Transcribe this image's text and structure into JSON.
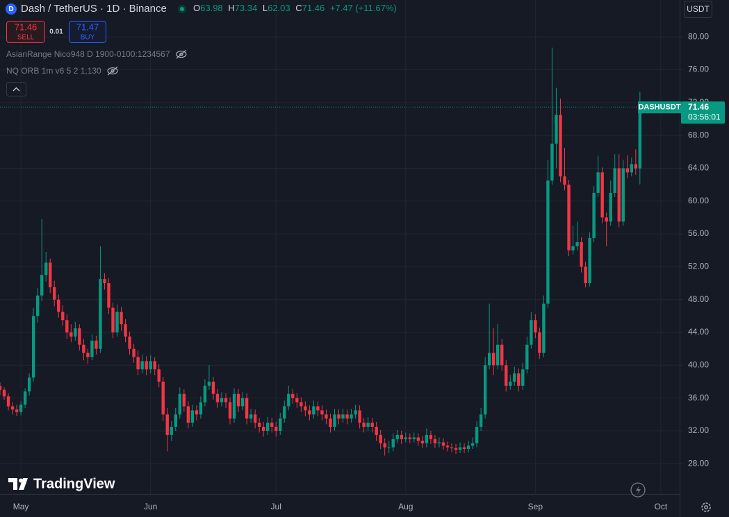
{
  "header": {
    "symbol": "Dash / TetherUS · 1D · Binance",
    "ohlc_letters": [
      "O",
      "H",
      "L",
      "C"
    ],
    "change": "+7.47 (+11.67%)"
  },
  "trade": {
    "sell_label": "SELL",
    "spread": 0.01,
    "buy_price": 71.47,
    "buy_label": "BUY"
  },
  "indicators": [
    "AsianRange Nico948 D 1900-0100:1234567",
    "NQ ORB 1m v6 5 2 1,130"
  ],
  "currency": "USDT",
  "price_tag": {
    "symbol": "DASHUSDT",
    "countdown": "03:56:01"
  },
  "brand": "TradingView",
  "chart_data": {
    "type": "candlestick",
    "up_color": "#089981",
    "down_color": "#f23645",
    "grid": true,
    "xlim": [
      0,
      162.5
    ],
    "xticks": [
      {
        "value": 5,
        "label": "May"
      },
      {
        "value": 36,
        "label": "Jun"
      },
      {
        "value": 66,
        "label": "Jul"
      },
      {
        "value": 97,
        "label": "Aug"
      },
      {
        "value": 128,
        "label": "Sep"
      },
      {
        "value": 158,
        "label": "Oct"
      }
    ],
    "ylim": [
      24.3,
      84.5
    ],
    "yticks": [
      {
        "value": 28,
        "label": "28.00"
      },
      {
        "value": 32,
        "label": "32.00"
      },
      {
        "value": 36,
        "label": "36.00"
      },
      {
        "value": 40,
        "label": "40.00"
      },
      {
        "value": 44,
        "label": "44.00"
      },
      {
        "value": 48,
        "label": "48.00"
      },
      {
        "value": 52,
        "label": "52.00"
      },
      {
        "value": 56,
        "label": "56.00"
      },
      {
        "value": 60,
        "label": "60.00"
      },
      {
        "value": 64,
        "label": "64.00"
      },
      {
        "value": 68,
        "label": "68.00"
      },
      {
        "value": 72,
        "label": "72.00"
      },
      {
        "value": 76,
        "label": "76.00"
      },
      {
        "value": 80,
        "label": "80.00"
      }
    ],
    "ohlc": [
      [
        37.5,
        37.9,
        36.4,
        37.0
      ],
      [
        37.0,
        37.3,
        35.8,
        36.2
      ],
      [
        36.2,
        36.6,
        34.5,
        35.0
      ],
      [
        35.0,
        35.5,
        34.0,
        34.6
      ],
      [
        34.6,
        35.2,
        33.8,
        34.3
      ],
      [
        34.3,
        35.6,
        33.9,
        35.2
      ],
      [
        35.2,
        37.2,
        34.8,
        36.8
      ],
      [
        36.8,
        39.0,
        36.3,
        38.5
      ],
      [
        38.5,
        47.0,
        38.0,
        46.0
      ],
      [
        46.0,
        49.4,
        45.2,
        48.5
      ],
      [
        48.5,
        57.8,
        47.8,
        51.0
      ],
      [
        51.0,
        53.8,
        50.2,
        52.5
      ],
      [
        52.5,
        53.0,
        48.8,
        49.5
      ],
      [
        49.5,
        50.3,
        47.2,
        48.0
      ],
      [
        48.0,
        48.6,
        45.8,
        46.5
      ],
      [
        46.5,
        47.3,
        44.8,
        45.5
      ],
      [
        45.5,
        46.2,
        43.2,
        44.0
      ],
      [
        44.0,
        45.0,
        42.8,
        43.5
      ],
      [
        43.5,
        45.3,
        43.0,
        44.5
      ],
      [
        44.5,
        45.0,
        41.8,
        42.5
      ],
      [
        42.5,
        43.2,
        40.6,
        41.5
      ],
      [
        41.5,
        42.0,
        40.2,
        41.0
      ],
      [
        41.0,
        43.8,
        40.6,
        43.0
      ],
      [
        43.0,
        43.6,
        41.3,
        42.0
      ],
      [
        42.0,
        54.5,
        41.5,
        50.5
      ],
      [
        50.5,
        51.2,
        49.2,
        50.0
      ],
      [
        50.0,
        50.6,
        46.2,
        47.0
      ],
      [
        47.0,
        47.6,
        43.3,
        44.0
      ],
      [
        44.0,
        47.4,
        43.5,
        46.5
      ],
      [
        46.5,
        47.1,
        44.2,
        45.0
      ],
      [
        45.0,
        45.6,
        42.8,
        43.5
      ],
      [
        43.5,
        44.1,
        41.3,
        42.0
      ],
      [
        42.0,
        42.6,
        40.3,
        41.0
      ],
      [
        41.0,
        41.8,
        38.8,
        39.5
      ],
      [
        39.5,
        41.3,
        39.0,
        40.5
      ],
      [
        40.5,
        41.1,
        38.8,
        39.5
      ],
      [
        39.5,
        41.2,
        39.0,
        40.5
      ],
      [
        40.5,
        41.0,
        38.8,
        39.5
      ],
      [
        39.5,
        40.1,
        37.3,
        38.0
      ],
      [
        38.0,
        38.6,
        33.2,
        34.0
      ],
      [
        34.0,
        34.8,
        29.5,
        31.5
      ],
      [
        31.5,
        33.2,
        30.8,
        32.5
      ],
      [
        32.5,
        34.8,
        32.0,
        34.0
      ],
      [
        34.0,
        37.3,
        33.5,
        36.5
      ],
      [
        36.5,
        37.1,
        34.3,
        35.0
      ],
      [
        35.0,
        35.6,
        32.3,
        33.0
      ],
      [
        33.0,
        35.2,
        32.5,
        34.5
      ],
      [
        34.5,
        35.1,
        33.3,
        34.0
      ],
      [
        34.0,
        36.2,
        33.5,
        35.5
      ],
      [
        35.5,
        38.3,
        35.0,
        37.5
      ],
      [
        37.5,
        40.0,
        37.0,
        38.0
      ],
      [
        38.0,
        38.6,
        35.8,
        36.5
      ],
      [
        36.5,
        37.1,
        34.8,
        35.5
      ],
      [
        35.5,
        36.7,
        35.0,
        36.0
      ],
      [
        36.0,
        36.6,
        34.8,
        35.5
      ],
      [
        35.5,
        36.1,
        32.8,
        33.5
      ],
      [
        33.5,
        37.2,
        33.0,
        36.5
      ],
      [
        36.5,
        37.1,
        34.3,
        35.0
      ],
      [
        35.0,
        36.7,
        34.5,
        36.0
      ],
      [
        36.0,
        36.6,
        32.8,
        33.5
      ],
      [
        33.5,
        34.7,
        33.0,
        34.0
      ],
      [
        34.0,
        34.6,
        32.3,
        33.0
      ],
      [
        33.0,
        33.6,
        31.8,
        32.5
      ],
      [
        32.5,
        33.1,
        31.3,
        32.0
      ],
      [
        32.0,
        33.7,
        31.5,
        33.0
      ],
      [
        33.0,
        33.6,
        31.8,
        32.5
      ],
      [
        32.5,
        33.1,
        31.3,
        32.0
      ],
      [
        32.0,
        34.2,
        31.5,
        33.5
      ],
      [
        33.5,
        35.7,
        33.0,
        35.0
      ],
      [
        35.0,
        37.5,
        34.5,
        36.5
      ],
      [
        36.5,
        37.1,
        35.3,
        36.0
      ],
      [
        36.0,
        36.6,
        34.8,
        35.5
      ],
      [
        35.5,
        36.1,
        34.3,
        35.0
      ],
      [
        35.0,
        35.6,
        33.8,
        34.5
      ],
      [
        34.5,
        35.1,
        33.3,
        34.0
      ],
      [
        34.0,
        35.7,
        33.5,
        35.0
      ],
      [
        35.0,
        35.6,
        33.8,
        34.5
      ],
      [
        34.5,
        35.1,
        33.3,
        34.0
      ],
      [
        34.0,
        34.6,
        32.8,
        33.5
      ],
      [
        33.5,
        34.1,
        31.8,
        32.5
      ],
      [
        32.5,
        34.7,
        32.0,
        34.0
      ],
      [
        34.0,
        34.6,
        32.8,
        33.5
      ],
      [
        33.5,
        34.7,
        33.0,
        34.0
      ],
      [
        34.0,
        34.6,
        32.8,
        33.5
      ],
      [
        33.5,
        34.7,
        33.0,
        34.0
      ],
      [
        34.0,
        35.2,
        33.5,
        34.5
      ],
      [
        34.5,
        35.1,
        32.3,
        33.0
      ],
      [
        33.0,
        33.6,
        31.8,
        32.5
      ],
      [
        32.5,
        33.7,
        32.0,
        33.0
      ],
      [
        33.0,
        33.6,
        31.8,
        32.5
      ],
      [
        32.5,
        33.1,
        30.8,
        31.5
      ],
      [
        31.5,
        32.1,
        29.8,
        30.5
      ],
      [
        30.5,
        31.1,
        29.0,
        30.0
      ],
      [
        30.0,
        30.8,
        29.3,
        30.0
      ],
      [
        30.0,
        31.7,
        29.5,
        31.0
      ],
      [
        31.0,
        32.1,
        30.5,
        31.5
      ],
      [
        31.5,
        32.0,
        30.4,
        31.0
      ],
      [
        31.0,
        31.8,
        30.6,
        31.2
      ],
      [
        31.2,
        31.7,
        30.5,
        31.0
      ],
      [
        31.0,
        31.8,
        30.6,
        31.2
      ],
      [
        31.2,
        31.7,
        30.2,
        30.8
      ],
      [
        30.8,
        31.4,
        29.9,
        30.5
      ],
      [
        30.5,
        32.3,
        30.0,
        31.5
      ],
      [
        31.5,
        32.0,
        30.4,
        31.0
      ],
      [
        31.0,
        31.5,
        29.9,
        30.5
      ],
      [
        30.5,
        31.2,
        30.0,
        30.6
      ],
      [
        30.6,
        31.1,
        29.7,
        30.2
      ],
      [
        30.2,
        30.7,
        29.5,
        30.0
      ],
      [
        30.0,
        30.5,
        29.4,
        29.9
      ],
      [
        29.9,
        30.4,
        29.2,
        29.7
      ],
      [
        29.7,
        30.6,
        29.3,
        30.0
      ],
      [
        30.0,
        30.5,
        29.3,
        29.8
      ],
      [
        29.8,
        30.8,
        29.4,
        30.2
      ],
      [
        30.2,
        31.2,
        29.8,
        30.5
      ],
      [
        30.5,
        33.2,
        30.0,
        32.5
      ],
      [
        32.5,
        34.8,
        32.0,
        34.0
      ],
      [
        34.0,
        41.0,
        33.5,
        40.0
      ],
      [
        40.0,
        47.5,
        39.5,
        41.5
      ],
      [
        41.5,
        44.5,
        38.8,
        40.0
      ],
      [
        40.0,
        45.0,
        39.5,
        42.5
      ],
      [
        42.5,
        43.2,
        39.3,
        40.0
      ],
      [
        40.0,
        40.6,
        36.8,
        37.5
      ],
      [
        37.5,
        38.8,
        37.0,
        38.0
      ],
      [
        38.0,
        39.8,
        37.5,
        39.0
      ],
      [
        39.0,
        39.6,
        36.8,
        37.5
      ],
      [
        37.5,
        40.3,
        37.0,
        39.5
      ],
      [
        39.5,
        43.5,
        39.0,
        42.5
      ],
      [
        42.5,
        46.5,
        42.0,
        45.5
      ],
      [
        45.5,
        46.2,
        43.3,
        44.0
      ],
      [
        44.0,
        44.6,
        40.8,
        41.5
      ],
      [
        41.5,
        48.5,
        41.0,
        47.5
      ],
      [
        47.5,
        65.0,
        47.0,
        62.5
      ],
      [
        62.5,
        78.7,
        62.0,
        67.0
      ],
      [
        67.0,
        73.8,
        64.0,
        70.5
      ],
      [
        70.5,
        72.5,
        62.3,
        63.0
      ],
      [
        63.0,
        66.5,
        61.3,
        62.0
      ],
      [
        62.0,
        62.6,
        53.3,
        54.0
      ],
      [
        54.0,
        57.0,
        53.5,
        54.5
      ],
      [
        54.5,
        57.5,
        54.0,
        55.0
      ],
      [
        55.0,
        55.6,
        51.3,
        52.0
      ],
      [
        52.0,
        52.6,
        49.5,
        50.0
      ],
      [
        50.0,
        56.2,
        49.6,
        55.5
      ],
      [
        55.5,
        61.8,
        55.0,
        61.0
      ],
      [
        61.0,
        65.5,
        60.5,
        63.5
      ],
      [
        63.5,
        64.1,
        57.3,
        58.0
      ],
      [
        58.0,
        58.6,
        54.5,
        57.5
      ],
      [
        57.5,
        62.5,
        57.0,
        61.0
      ],
      [
        61.0,
        65.7,
        60.5,
        64.0
      ],
      [
        64.0,
        65.7,
        56.8,
        57.5
      ],
      [
        57.5,
        65.0,
        57.0,
        64.0
      ],
      [
        64.0,
        65.6,
        62.8,
        63.5
      ],
      [
        63.5,
        65.3,
        63.0,
        64.5
      ],
      [
        64.5,
        66.3,
        63.2,
        63.98
      ],
      [
        63.98,
        73.34,
        62.03,
        71.46
      ]
    ]
  }
}
